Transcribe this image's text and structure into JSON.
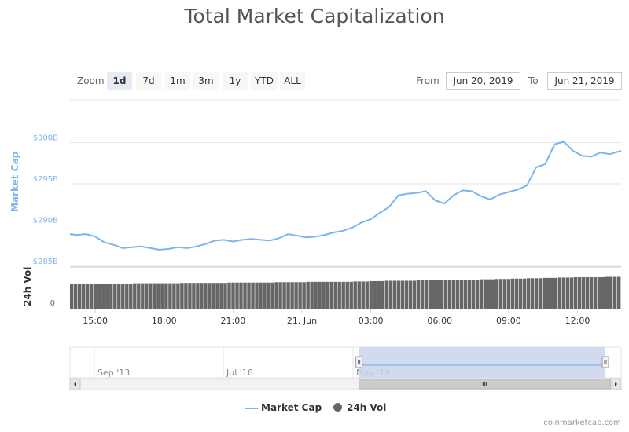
{
  "chart_data": {
    "type": "line",
    "title": "Total Market Capitalization",
    "ylabel": "Market Cap",
    "ylabel_secondary": "24h Vol",
    "y_ticks": [
      "$300B",
      "$295B",
      "$290B",
      "$285B"
    ],
    "y_tick_values": [
      300,
      295,
      290,
      285
    ],
    "ylim": [
      285,
      300
    ],
    "vol_tick": "0",
    "x_ticks": [
      "15:00",
      "18:00",
      "21:00",
      "21. Jun",
      "03:00",
      "06:00",
      "09:00",
      "12:00"
    ],
    "x_tick_hours": [
      15,
      18,
      21,
      24,
      27,
      30,
      33,
      36
    ],
    "xlim_hours": [
      13.9,
      37.9
    ],
    "series": [
      {
        "name": "Market Cap",
        "color": "#7cb5ec",
        "x": [
          13.9,
          14.2,
          14.6,
          15.0,
          15.4,
          15.8,
          16.2,
          16.6,
          17.0,
          17.4,
          17.8,
          18.2,
          18.6,
          19.0,
          19.4,
          19.8,
          20.2,
          20.6,
          21.0,
          21.4,
          21.8,
          22.2,
          22.6,
          23.0,
          23.4,
          23.8,
          24.2,
          24.6,
          25.0,
          25.4,
          25.8,
          26.2,
          26.6,
          27.0,
          27.4,
          27.8,
          28.2,
          28.6,
          29.0,
          29.4,
          29.8,
          30.2,
          30.6,
          31.0,
          31.4,
          31.8,
          32.2,
          32.6,
          33.0,
          33.4,
          33.8,
          34.2,
          34.6,
          35.0,
          35.4,
          35.8,
          36.2,
          36.6,
          37.0,
          37.4,
          37.9
        ],
        "values": [
          288.9,
          288.8,
          288.9,
          288.6,
          287.9,
          287.6,
          287.2,
          287.3,
          287.4,
          287.2,
          287.0,
          287.1,
          287.3,
          287.2,
          287.4,
          287.7,
          288.1,
          288.2,
          288.0,
          288.2,
          288.3,
          288.2,
          288.1,
          288.4,
          288.9,
          288.7,
          288.5,
          288.6,
          288.8,
          289.1,
          289.3,
          289.7,
          290.3,
          290.7,
          291.5,
          292.2,
          293.6,
          293.8,
          293.9,
          294.1,
          293.0,
          292.6,
          293.6,
          294.2,
          294.1,
          293.5,
          293.1,
          293.7,
          294.0,
          294.3,
          294.8,
          297.0,
          297.4,
          299.8,
          300.1,
          299.0,
          298.4,
          298.3,
          298.8,
          298.6,
          299.0
        ]
      },
      {
        "name": "24h Vol",
        "color": "#666666",
        "values_relative": [
          0.62,
          0.62,
          0.62,
          0.62,
          0.63,
          0.63,
          0.63,
          0.64,
          0.64,
          0.64,
          0.65,
          0.65,
          0.65,
          0.66,
          0.66,
          0.67,
          0.67,
          0.67,
          0.68,
          0.69,
          0.7,
          0.7,
          0.71,
          0.72,
          0.72,
          0.73,
          0.74,
          0.75,
          0.76,
          0.77,
          0.78,
          0.79,
          0.8,
          0.8,
          0.81
        ]
      }
    ],
    "grid": true,
    "legend": "bottom-center"
  },
  "navigator": {
    "labels": [
      "Sep '13",
      "Jul '16",
      "May '19"
    ],
    "selected_fraction": [
      0.525,
      1.0
    ]
  },
  "zoom": {
    "label": "Zoom",
    "buttons": [
      "1d",
      "7d",
      "1m",
      "3m",
      "1y",
      "YTD",
      "ALL"
    ],
    "active": "1d"
  },
  "range": {
    "from_label": "From",
    "from_value": "Jun 20, 2019",
    "to_label": "To",
    "to_value": "Jun 21, 2019"
  },
  "credit": "coinmarketcap.com"
}
